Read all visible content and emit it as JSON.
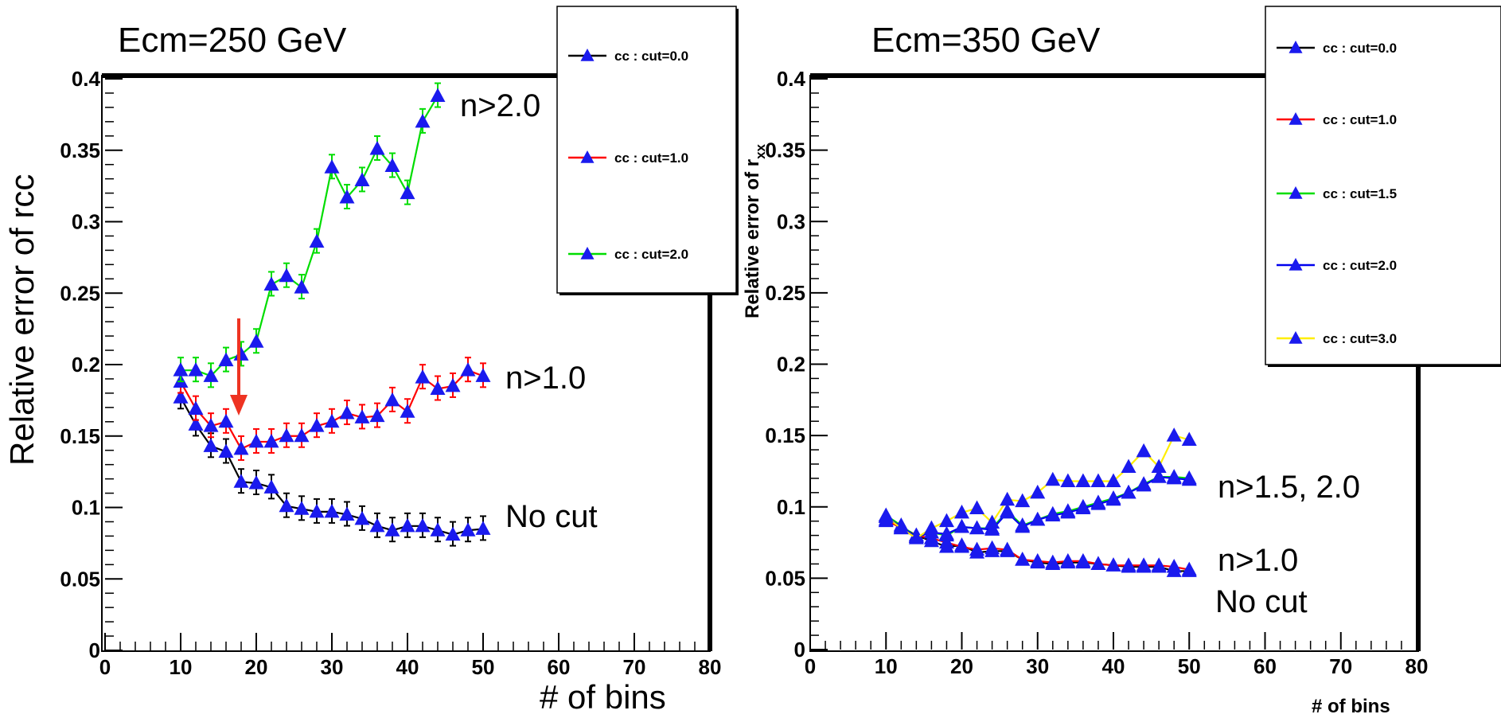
{
  "chart_data": [
    {
      "type": "line",
      "title": "Ecm=250 GeV",
      "xlabel": "# of bins",
      "ylabel": "Relative error of rcc",
      "xlim": [
        0,
        80
      ],
      "ylim": [
        0,
        0.4
      ],
      "x_ticks": [
        "0",
        "10",
        "20",
        "30",
        "40",
        "50",
        "60",
        "70",
        "80"
      ],
      "y_ticks": [
        "0",
        "0.05",
        "0.1",
        "0.15",
        "0.2",
        "0.25",
        "0.3",
        "0.35",
        "0.4"
      ],
      "grid": false,
      "legend_position": "top-right",
      "series": [
        {
          "name": "cc   : cut=0.0",
          "color": "#000000",
          "x": [
            10,
            12,
            14,
            16,
            18,
            20,
            22,
            24,
            26,
            28,
            30,
            32,
            34,
            36,
            38,
            40,
            42,
            44,
            46,
            48,
            50
          ],
          "y": [
            0.177,
            0.158,
            0.143,
            0.139,
            0.118,
            0.117,
            0.114,
            0.101,
            0.099,
            0.097,
            0.097,
            0.095,
            0.092,
            0.087,
            0.084,
            0.087,
            0.087,
            0.084,
            0.081,
            0.084,
            0.085
          ]
        },
        {
          "name": "cc   : cut=1.0",
          "color": "#ff0000",
          "x": [
            10,
            12,
            14,
            16,
            18,
            20,
            22,
            24,
            26,
            28,
            30,
            32,
            34,
            36,
            38,
            40,
            42,
            44,
            46,
            48,
            50
          ],
          "y": [
            0.188,
            0.169,
            0.157,
            0.16,
            0.141,
            0.146,
            0.146,
            0.15,
            0.15,
            0.157,
            0.16,
            0.166,
            0.163,
            0.164,
            0.175,
            0.167,
            0.191,
            0.183,
            0.185,
            0.196,
            0.192
          ]
        },
        {
          "name": "cc   : cut=2.0",
          "color": "#00dd00",
          "x": [
            10,
            12,
            14,
            16,
            18,
            20,
            22,
            24,
            26,
            28,
            30,
            32,
            34,
            36,
            38,
            40,
            42,
            44
          ],
          "y": [
            0.196,
            0.196,
            0.192,
            0.203,
            0.207,
            0.216,
            0.256,
            0.262,
            0.254,
            0.286,
            0.338,
            0.317,
            0.329,
            0.351,
            0.339,
            0.32,
            0.37,
            0.388
          ]
        }
      ],
      "annotations": [
        "n>2.0",
        "n>1.0",
        "No cut"
      ],
      "arrow": {
        "x": 18,
        "color": "#ee3322"
      }
    },
    {
      "type": "line",
      "title": "Ecm=350 GeV",
      "xlabel": "# of bins",
      "ylabel": "Relative error of r",
      "ylabel_subscript": "xx",
      "xlim": [
        0,
        80
      ],
      "ylim": [
        0,
        0.4
      ],
      "x_ticks": [
        "0",
        "10",
        "20",
        "30",
        "40",
        "50",
        "60",
        "70",
        "80"
      ],
      "y_ticks": [
        "0",
        "0.05",
        "0.1",
        "0.15",
        "0.2",
        "0.25",
        "0.3",
        "0.35",
        "0.4"
      ],
      "grid": false,
      "legend_position": "top-right",
      "series": [
        {
          "name": "cc   : cut=0.0",
          "color": "#000000",
          "x": [
            10,
            12,
            14,
            16,
            18,
            20,
            22,
            24,
            26,
            28,
            30,
            32,
            34,
            36,
            38,
            40,
            42,
            44,
            46,
            48,
            50
          ],
          "y": [
            0.09,
            0.086,
            0.08,
            0.076,
            0.072,
            0.073,
            0.068,
            0.069,
            0.069,
            0.063,
            0.061,
            0.06,
            0.061,
            0.061,
            0.06,
            0.059,
            0.058,
            0.058,
            0.058,
            0.055,
            0.055
          ]
        },
        {
          "name": "cc   : cut=1.0",
          "color": "#ff0000",
          "x": [
            10,
            12,
            14,
            16,
            18,
            20,
            22,
            24,
            26,
            28,
            30,
            32,
            34,
            36,
            38,
            40,
            42,
            44,
            46,
            48,
            50
          ],
          "y": [
            0.091,
            0.085,
            0.08,
            0.078,
            0.075,
            0.072,
            0.07,
            0.071,
            0.07,
            0.063,
            0.062,
            0.061,
            0.062,
            0.062,
            0.06,
            0.059,
            0.059,
            0.059,
            0.059,
            0.058,
            0.056
          ]
        },
        {
          "name": "cc   : cut=1.5",
          "color": "#00dd00",
          "x": [
            10,
            12,
            14,
            16,
            18,
            20,
            22,
            24,
            26,
            28,
            30,
            32,
            34,
            36,
            38,
            40,
            42,
            44,
            46,
            48,
            50
          ],
          "y": [
            0.094,
            0.087,
            0.079,
            0.082,
            0.08,
            0.086,
            0.085,
            0.085,
            0.097,
            0.087,
            0.091,
            0.095,
            0.097,
            0.1,
            0.103,
            0.106,
            0.11,
            0.116,
            0.121,
            0.121,
            0.12
          ]
        },
        {
          "name": "cc   : cut=2.0",
          "color": "#0000ee",
          "x": [
            10,
            12,
            14,
            16,
            18,
            20,
            22,
            24,
            26,
            28,
            30,
            32,
            34,
            36,
            38,
            40,
            42,
            44,
            46,
            48,
            50
          ],
          "y": [
            0.093,
            0.086,
            0.079,
            0.082,
            0.081,
            0.086,
            0.085,
            0.084,
            0.096,
            0.086,
            0.091,
            0.094,
            0.096,
            0.099,
            0.102,
            0.105,
            0.11,
            0.115,
            0.121,
            0.12,
            0.119
          ]
        },
        {
          "name": "cc   : cut=3.0",
          "color": "#ffee00",
          "x": [
            10,
            12,
            14,
            16,
            18,
            20,
            22,
            24,
            26,
            28,
            30,
            32,
            34,
            36,
            38,
            40,
            42,
            44,
            46,
            48,
            50
          ],
          "y": [
            0.093,
            0.085,
            0.078,
            0.085,
            0.09,
            0.096,
            0.099,
            0.089,
            0.105,
            0.104,
            0.11,
            0.119,
            0.118,
            0.118,
            0.118,
            0.118,
            0.128,
            0.139,
            0.128,
            0.15,
            0.147
          ]
        }
      ],
      "annotations": [
        "n>1.5, 2.0",
        "n>1.0",
        "No cut"
      ]
    }
  ]
}
